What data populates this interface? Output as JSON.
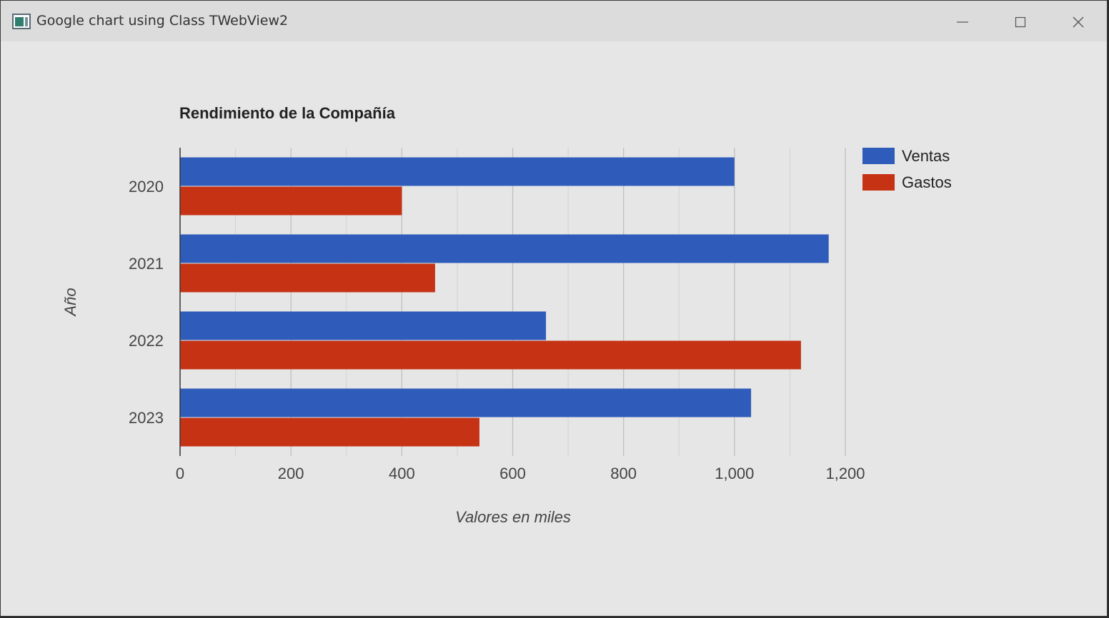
{
  "window": {
    "title": "Google chart using Class TWebView2"
  },
  "colors": {
    "ventas": "#2f5cbb",
    "gastos": "#c63214",
    "gridline": "#bfbfbf",
    "baseline": "#333333"
  },
  "icons": {
    "app": "app-icon",
    "minimize": "minimize-icon",
    "maximize": "maximize-icon",
    "close": "close-icon"
  },
  "chart_data": {
    "type": "bar",
    "orientation": "horizontal",
    "title": "Rendimiento de la Compañía",
    "xlabel": "Valores en miles",
    "ylabel": "Año",
    "categories": [
      "2020",
      "2021",
      "2022",
      "2023"
    ],
    "series": [
      {
        "name": "Ventas",
        "values": [
          1000,
          1170,
          660,
          1030
        ]
      },
      {
        "name": "Gastos",
        "values": [
          400,
          460,
          1120,
          540
        ]
      }
    ],
    "xlim": [
      0,
      1200
    ],
    "x_ticks": [
      "0",
      "200",
      "400",
      "600",
      "800",
      "1,000",
      "1,200"
    ],
    "grid": true,
    "legend_position": "right"
  }
}
